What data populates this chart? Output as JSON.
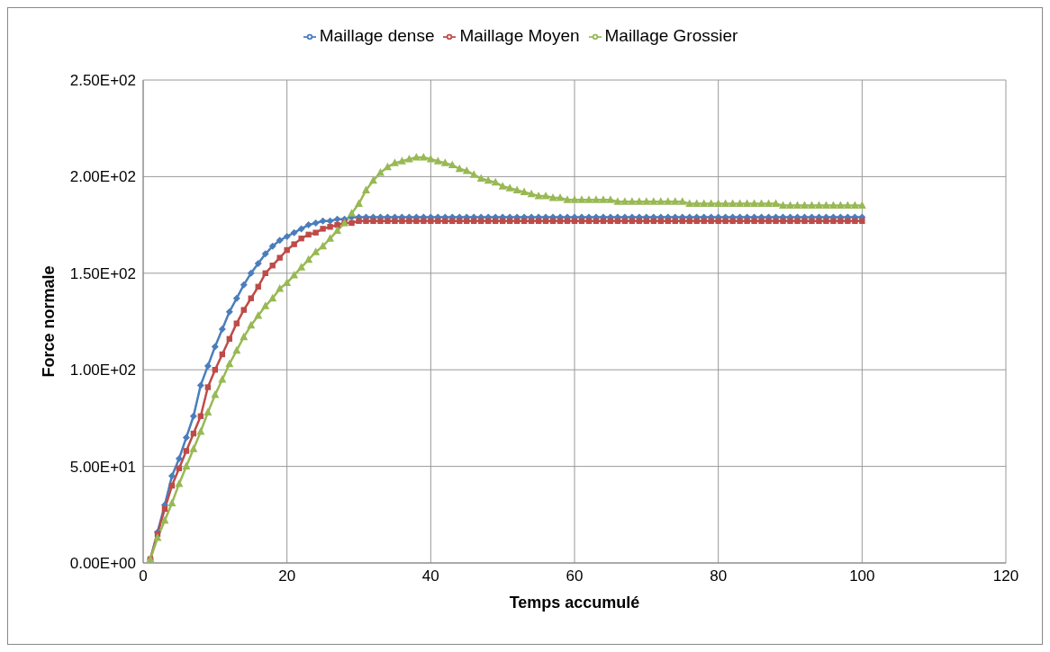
{
  "chart_data": {
    "type": "line",
    "xlabel": "Temps accumulé",
    "ylabel": "Force normale",
    "x": [
      1,
      2,
      3,
      4,
      5,
      6,
      7,
      8,
      9,
      10,
      11,
      12,
      13,
      14,
      15,
      16,
      17,
      18,
      19,
      20,
      21,
      22,
      23,
      24,
      25,
      26,
      27,
      28,
      29,
      30,
      31,
      32,
      33,
      34,
      35,
      36,
      37,
      38,
      39,
      40,
      41,
      42,
      43,
      44,
      45,
      46,
      47,
      48,
      49,
      50,
      51,
      52,
      53,
      54,
      55,
      56,
      57,
      58,
      59,
      60,
      61,
      62,
      63,
      64,
      65,
      66,
      67,
      68,
      69,
      70,
      71,
      72,
      73,
      74,
      75,
      76,
      77,
      78,
      79,
      80,
      81,
      82,
      83,
      84,
      85,
      86,
      87,
      88,
      89,
      90,
      91,
      92,
      93,
      94,
      95,
      96,
      97,
      98,
      99,
      100
    ],
    "series": [
      {
        "name": "Maillage dense",
        "color": "#4a7ebb",
        "marker": "diamond",
        "values": [
          2,
          16,
          30,
          45,
          54,
          65,
          76,
          92,
          102,
          112,
          121,
          130,
          137,
          144,
          150,
          155,
          160,
          164,
          167,
          169,
          171,
          173,
          175,
          176,
          177,
          177,
          178,
          178,
          179,
          179,
          179,
          179,
          179,
          179,
          179,
          179,
          179,
          179,
          179,
          179,
          179,
          179,
          179,
          179,
          179,
          179,
          179,
          179,
          179,
          179,
          179,
          179,
          179,
          179,
          179,
          179,
          179,
          179,
          179,
          179,
          179,
          179,
          179,
          179,
          179,
          179,
          179,
          179,
          179,
          179,
          179,
          179,
          179,
          179,
          179,
          179,
          179,
          179,
          179,
          179,
          179,
          179,
          179,
          179,
          179,
          179,
          179,
          179,
          179,
          179,
          179,
          179,
          179,
          179,
          179,
          179,
          179,
          179,
          179,
          179
        ]
      },
      {
        "name": "Maillage Moyen",
        "color": "#be4b48",
        "marker": "square",
        "values": [
          2,
          15,
          28,
          40,
          49,
          58,
          67,
          76,
          91,
          100,
          108,
          116,
          124,
          131,
          137,
          143,
          150,
          154,
          158,
          162,
          165,
          168,
          170,
          171,
          173,
          174,
          175,
          176,
          176,
          177,
          177,
          177,
          177,
          177,
          177,
          177,
          177,
          177,
          177,
          177,
          177,
          177,
          177,
          177,
          177,
          177,
          177,
          177,
          177,
          177,
          177,
          177,
          177,
          177,
          177,
          177,
          177,
          177,
          177,
          177,
          177,
          177,
          177,
          177,
          177,
          177,
          177,
          177,
          177,
          177,
          177,
          177,
          177,
          177,
          177,
          177,
          177,
          177,
          177,
          177,
          177,
          177,
          177,
          177,
          177,
          177,
          177,
          177,
          177,
          177,
          177,
          177,
          177,
          177,
          177,
          177,
          177,
          177,
          177,
          177
        ]
      },
      {
        "name": "Maillage Grossier",
        "color": "#98b954",
        "marker": "triangle",
        "values": [
          2,
          13,
          22,
          31,
          41,
          50,
          59,
          68,
          78,
          87,
          95,
          103,
          110,
          117,
          123,
          128,
          133,
          137,
          142,
          145,
          149,
          153,
          157,
          161,
          164,
          168,
          172,
          176,
          181,
          186,
          193,
          198,
          202,
          205,
          207,
          208,
          209,
          210,
          210,
          209,
          208,
          207,
          206,
          204,
          203,
          201,
          199,
          198,
          197,
          195,
          194,
          193,
          192,
          191,
          190,
          190,
          189,
          189,
          188,
          188,
          188,
          188,
          188,
          188,
          188,
          187,
          187,
          187,
          187,
          187,
          187,
          187,
          187,
          187,
          187,
          186,
          186,
          186,
          186,
          186,
          186,
          186,
          186,
          186,
          186,
          186,
          186,
          186,
          185,
          185,
          185,
          185,
          185,
          185,
          185,
          185,
          185,
          185,
          185,
          185
        ]
      }
    ],
    "xlim": [
      0,
      120
    ],
    "xticks": [
      0,
      20,
      40,
      60,
      80,
      100,
      120
    ],
    "ylim": [
      0,
      250
    ],
    "yticks": [
      {
        "value": 0,
        "label": "0.00E+00"
      },
      {
        "value": 50,
        "label": "5.00E+01"
      },
      {
        "value": 100,
        "label": "1.00E+02"
      },
      {
        "value": 150,
        "label": "1.50E+02"
      },
      {
        "value": 200,
        "label": "2.00E+02"
      },
      {
        "value": 250,
        "label": "2.50E+02"
      }
    ],
    "grid": true,
    "legend": "top"
  }
}
